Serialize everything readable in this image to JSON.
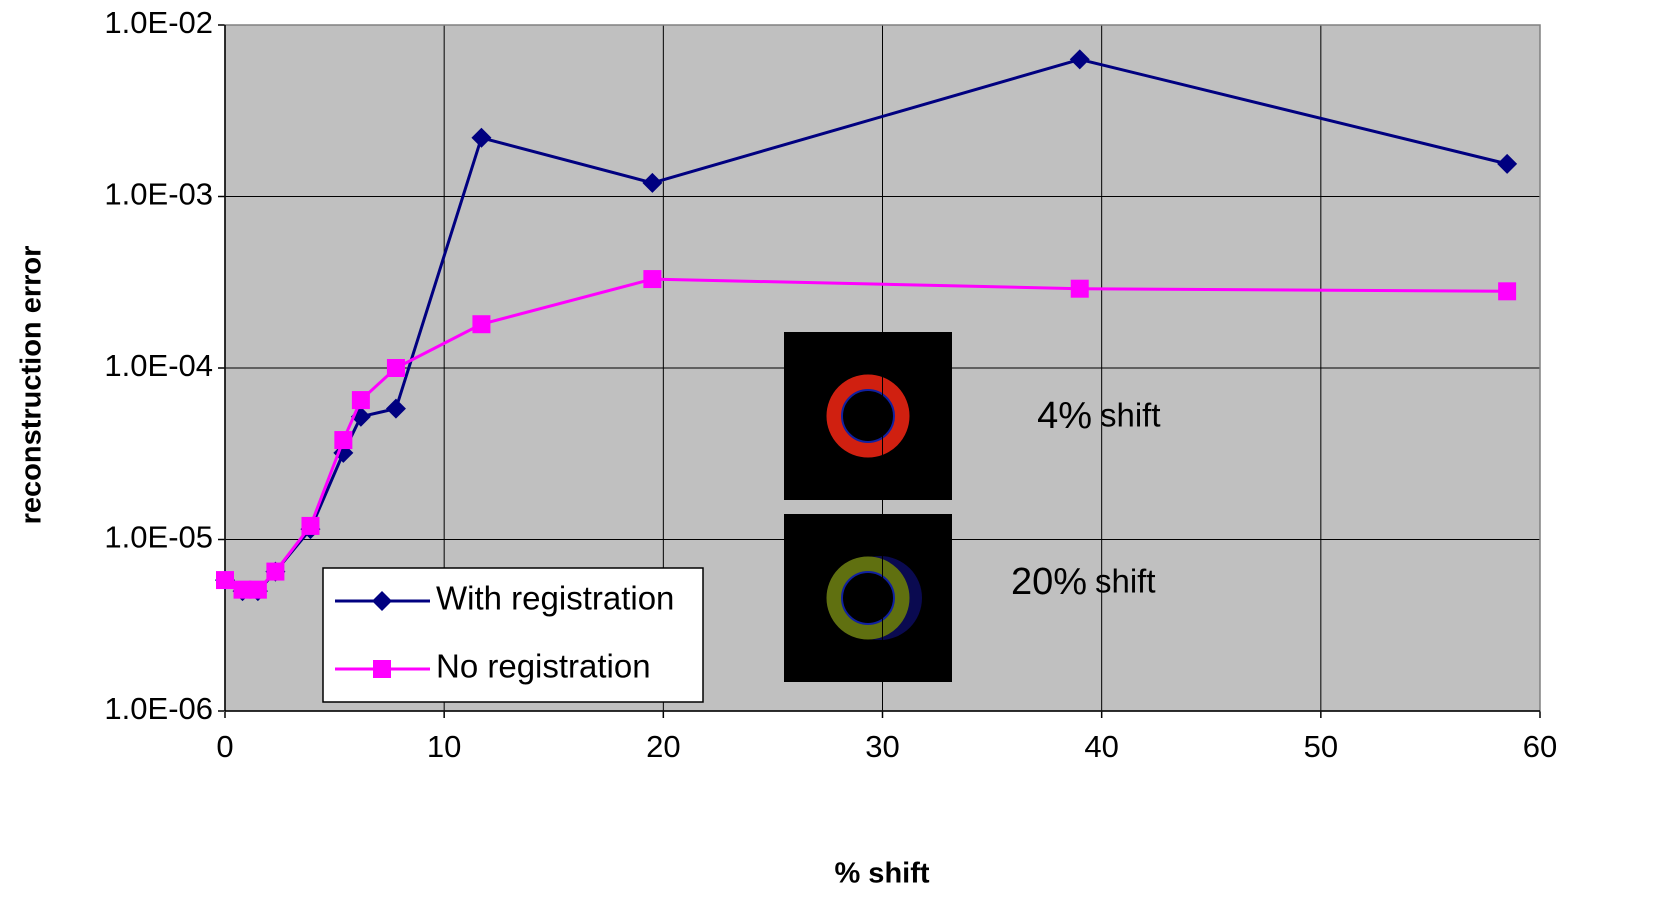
{
  "chart_data": {
    "type": "line",
    "xlabel": "% shift",
    "ylabel": "reconstruction error",
    "log_y": true,
    "grid": true,
    "legend": "lower left",
    "xlim": [
      0,
      60
    ],
    "xticks": [
      0,
      10,
      20,
      30,
      40,
      50,
      60
    ],
    "ylim": [
      1e-06,
      0.01
    ],
    "yticks": [
      {
        "value": 1e-06,
        "label": "1.0E-06"
      },
      {
        "value": 1e-05,
        "label": "1.0E-05"
      },
      {
        "value": 0.0001,
        "label": "1.0E-04"
      },
      {
        "value": 0.001,
        "label": "1.0E-03"
      },
      {
        "value": 0.01,
        "label": "1.0E-02"
      }
    ],
    "x": [
      0,
      0.8,
      1.5,
      2.3,
      3.9,
      5.4,
      6.2,
      7.8,
      11.7,
      19.5,
      39,
      58.5
    ],
    "series": [
      {
        "name": "With registration",
        "color": "#000080",
        "marker": "diamond",
        "values": [
          5.8e-06,
          5e-06,
          5e-06,
          6.5e-06,
          1.15e-05,
          3.2e-05,
          5.2e-05,
          5.8e-05,
          0.0022,
          0.0012,
          0.0063,
          0.00155
        ]
      },
      {
        "name": "No registration",
        "color": "#ff00ff",
        "marker": "square",
        "values": [
          5.8e-06,
          5.1e-06,
          5.1e-06,
          6.5e-06,
          1.2e-05,
          3.8e-05,
          6.5e-05,
          0.0001,
          0.00018,
          0.00033,
          0.00029,
          0.00028
        ]
      }
    ],
    "annotations": [
      "4%",
      "shift",
      "20%",
      "shift"
    ]
  }
}
